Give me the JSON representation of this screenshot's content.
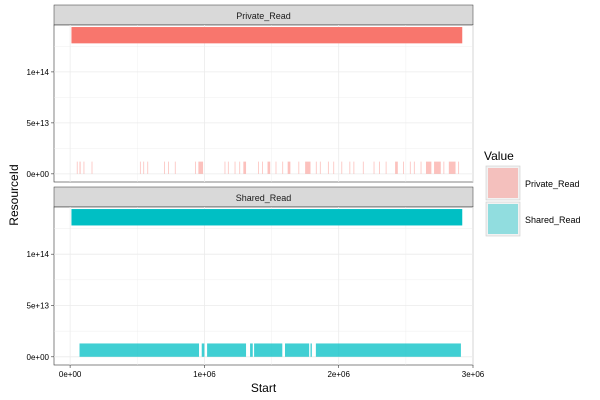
{
  "chart_data": {
    "type": "bar",
    "xlabel": "Start",
    "ylabel": "ResourceId",
    "xlim": [
      -120000,
      3000000
    ],
    "ylim": [
      -8000000000000,
      146000000000000
    ],
    "x_ticks": [
      0,
      1000000,
      2000000,
      3000000
    ],
    "x_tick_labels": [
      "0e+00",
      "1e+06",
      "2e+06",
      "3e+06"
    ],
    "y_ticks": [
      0,
      50000000000000,
      100000000000000
    ],
    "y_tick_labels": [
      "0e+00",
      "5e+13",
      "1e+14"
    ],
    "grid": true,
    "legend": {
      "title": "Value",
      "position": "right",
      "entries": [
        "Private_Read",
        "Shared_Read"
      ]
    },
    "colors": {
      "Private_Read": "#F8766D",
      "Shared_Read": "#00BFC4",
      "strip_bg": "#D9D9D9",
      "grid": "#EBEBEB"
    },
    "series": [
      {
        "name": "Private_Read",
        "panel": "Private_Read",
        "high_band": {
          "x": [
            10000,
            2920000
          ],
          "y": [
            128000000000000,
            144000000000000
          ]
        },
        "low_band_y": [
          0,
          12000000000000
        ],
        "low_intervals": [
          [
            50000,
            55000
          ],
          [
            70000,
            78000
          ],
          [
            100000,
            106000
          ],
          [
            160000,
            165000
          ],
          [
            520000,
            526000
          ],
          [
            545000,
            551000
          ],
          [
            575000,
            579000
          ],
          [
            700000,
            705000
          ],
          [
            730000,
            735000
          ],
          [
            780000,
            784000
          ],
          [
            930000,
            936000
          ],
          [
            955000,
            990000
          ],
          [
            1150000,
            1155000
          ],
          [
            1175000,
            1180000
          ],
          [
            1225000,
            1230000
          ],
          [
            1260000,
            1266000
          ],
          [
            1290000,
            1310000
          ],
          [
            1400000,
            1405000
          ],
          [
            1430000,
            1436000
          ],
          [
            1470000,
            1490000
          ],
          [
            1530000,
            1535000
          ],
          [
            1580000,
            1586000
          ],
          [
            1620000,
            1640000
          ],
          [
            1700000,
            1705000
          ],
          [
            1750000,
            1790000
          ],
          [
            1830000,
            1836000
          ],
          [
            1860000,
            1865000
          ],
          [
            1920000,
            1926000
          ],
          [
            1960000,
            1965000
          ],
          [
            2020000,
            2025000
          ],
          [
            2080000,
            2086000
          ],
          [
            2110000,
            2115000
          ],
          [
            2180000,
            2186000
          ],
          [
            2260000,
            2265000
          ],
          [
            2300000,
            2306000
          ],
          [
            2350000,
            2355000
          ],
          [
            2420000,
            2440000
          ],
          [
            2480000,
            2486000
          ],
          [
            2530000,
            2535000
          ],
          [
            2560000,
            2566000
          ],
          [
            2610000,
            2615000
          ],
          [
            2650000,
            2690000
          ],
          [
            2710000,
            2760000
          ],
          [
            2780000,
            2786000
          ],
          [
            2820000,
            2870000
          ],
          [
            2890000,
            2896000
          ]
        ]
      },
      {
        "name": "Shared_Read",
        "panel": "Shared_Read",
        "high_band": {
          "x": [
            10000,
            2920000
          ],
          "y": [
            128000000000000,
            144000000000000
          ]
        },
        "low_band_y": [
          0,
          13000000000000
        ],
        "low_intervals": [
          [
            70000,
            960000
          ],
          [
            980000,
            1000000
          ],
          [
            1020000,
            1310000
          ],
          [
            1340000,
            1360000
          ],
          [
            1370000,
            1580000
          ],
          [
            1600000,
            1780000
          ],
          [
            1790000,
            1800000
          ],
          [
            1830000,
            2910000
          ]
        ]
      }
    ]
  }
}
